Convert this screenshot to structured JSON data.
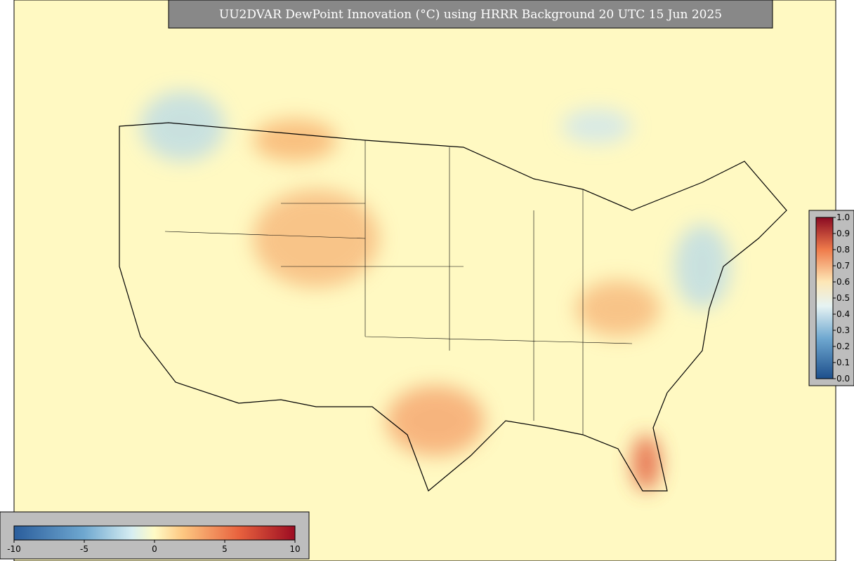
{
  "title": "UU2DVAR DewPoint Innovation (°C) using HRRR Background 20 UTC 15 Jun 2025",
  "colorbar_innovation": {
    "ticks": [
      -10,
      -5,
      0,
      5,
      10
    ]
  },
  "colorbar_percentile": {
    "ticks": [
      {
        "value": 0,
        "label": "0.0"
      },
      0.1,
      0.2,
      0.3,
      0.4,
      0.5,
      0.6,
      0.7,
      0.8,
      0.9,
      {
        "value": 1,
        "label": "1.0"
      }
    ]
  }
}
